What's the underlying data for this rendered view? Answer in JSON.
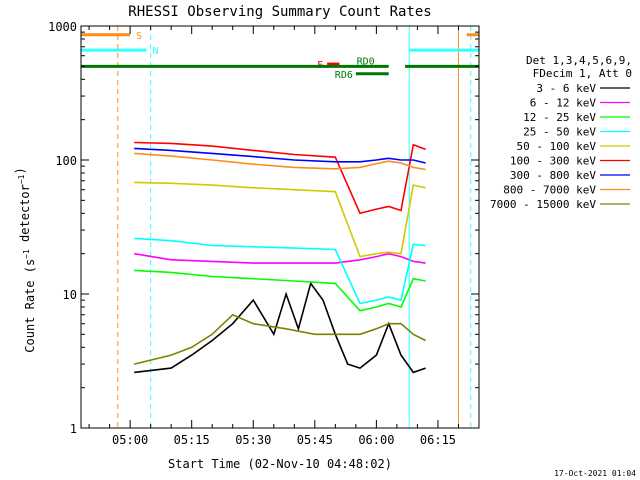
{
  "chart_data": {
    "type": "line",
    "title": "RHESSI Observing Summary Count Rates",
    "xlabel": "Start Time (02-Nov-10 04:48:02)",
    "ylabel": "Count Rate (s⁻¹ detector⁻¹)",
    "y_scale": "log",
    "ylim": [
      1,
      1000
    ],
    "xlim": [
      "04:48:02",
      "06:25:00"
    ],
    "x_ticks": [
      "05:00",
      "05:15",
      "05:30",
      "05:45",
      "06:00",
      "06:15"
    ],
    "y_ticks": [
      "1",
      "10",
      "100",
      "1000"
    ],
    "legend_header": [
      "Det 1,3,4,5,6,9,",
      "FDecim 1, Att 0"
    ],
    "legend_position": "right",
    "footer_date": "17-Oct-2021 01:04",
    "flags": [
      {
        "label": "S",
        "color": "#ff8c1a",
        "level": 860,
        "segments": [
          [
            "04:48",
            "05:00"
          ],
          [
            "06:22",
            "06:25"
          ]
        ]
      },
      {
        "label": "N",
        "color": "#33ffff",
        "level": 660,
        "segments": [
          [
            "04:48",
            "05:04"
          ],
          [
            "06:08",
            "06:25"
          ]
        ]
      },
      {
        "label": "F",
        "color": "#ff0000",
        "level": 520,
        "segments": [
          [
            "05:48",
            "05:51"
          ]
        ]
      },
      {
        "label": "RD0",
        "color": "#007700",
        "level": 500,
        "segments": [
          [
            "04:48",
            "06:03"
          ],
          [
            "06:07",
            "06:25"
          ]
        ]
      },
      {
        "label": "RD6",
        "color": "#007700",
        "level": 440,
        "segments": [
          [
            "05:55",
            "06:03"
          ]
        ]
      }
    ],
    "vertical_lines": [
      {
        "time": "04:57",
        "color": "#ff8c1a",
        "style": "dashed"
      },
      {
        "time": "05:05",
        "color": "#33ffff",
        "style": "dashed"
      },
      {
        "time": "06:08",
        "color": "#33ffff",
        "style": "solid"
      },
      {
        "time": "06:20",
        "color": "#ff8c1a",
        "style": "solid"
      },
      {
        "time": "06:23",
        "color": "#33ffff",
        "style": "dashed"
      }
    ],
    "series": [
      {
        "name": "3 - 6 keV",
        "color": "#000000",
        "x": [
          "05:01",
          "05:10",
          "05:15",
          "05:20",
          "05:25",
          "05:30",
          "05:35",
          "05:38",
          "05:41",
          "05:44",
          "05:47",
          "05:50",
          "05:53",
          "05:56",
          "06:00",
          "06:03",
          "06:06",
          "06:09",
          "06:12"
        ],
        "y": [
          2.6,
          2.8,
          3.5,
          4.5,
          6,
          9,
          5,
          10,
          5.5,
          12,
          9,
          5,
          3,
          2.8,
          3.5,
          6,
          3.5,
          2.6,
          2.8
        ]
      },
      {
        "name": "6 - 12 keV",
        "color": "#ff00ff",
        "x": [
          "05:01",
          "05:10",
          "05:20",
          "05:30",
          "05:40",
          "05:50",
          "05:56",
          "06:00",
          "06:03",
          "06:06",
          "06:09",
          "06:12"
        ],
        "y": [
          20,
          18,
          17.5,
          17,
          17,
          17,
          18,
          19,
          20,
          19,
          17.5,
          17
        ]
      },
      {
        "name": "12 - 25 keV",
        "color": "#00ff00",
        "x": [
          "05:01",
          "05:10",
          "05:20",
          "05:30",
          "05:40",
          "05:50",
          "05:56",
          "06:00",
          "06:03",
          "06:06",
          "06:09",
          "06:12"
        ],
        "y": [
          15,
          14.5,
          13.5,
          13,
          12.5,
          12,
          7.5,
          8,
          8.5,
          8,
          13,
          12.5
        ]
      },
      {
        "name": "25 - 50 keV",
        "color": "#00ffff",
        "x": [
          "05:01",
          "05:10",
          "05:20",
          "05:30",
          "05:40",
          "05:50",
          "05:56",
          "06:00",
          "06:03",
          "06:06",
          "06:09",
          "06:12"
        ],
        "y": [
          26,
          25,
          23,
          22.5,
          22,
          21.5,
          8.5,
          9,
          9.5,
          9,
          23.5,
          23
        ]
      },
      {
        "name": "50 - 100 keV",
        "color": "#d4c800",
        "x": [
          "05:01",
          "05:10",
          "05:20",
          "05:30",
          "05:40",
          "05:50",
          "05:56",
          "06:00",
          "06:03",
          "06:06",
          "06:09",
          "06:12"
        ],
        "y": [
          68,
          67,
          65,
          62,
          60,
          58,
          19,
          20,
          20.5,
          20,
          65,
          62
        ]
      },
      {
        "name": "100 - 300 keV",
        "color": "#ff0000",
        "x": [
          "05:01",
          "05:10",
          "05:20",
          "05:30",
          "05:40",
          "05:50",
          "05:56",
          "06:00",
          "06:03",
          "06:06",
          "06:09",
          "06:12"
        ],
        "y": [
          135,
          133,
          127,
          118,
          110,
          105,
          40,
          43,
          45,
          42,
          130,
          120
        ]
      },
      {
        "name": "300 - 800 keV",
        "color": "#0000ff",
        "x": [
          "05:01",
          "05:10",
          "05:20",
          "05:30",
          "05:40",
          "05:50",
          "05:56",
          "06:00",
          "06:03",
          "06:06",
          "06:09",
          "06:12"
        ],
        "y": [
          122,
          118,
          112,
          106,
          100,
          97,
          97,
          100,
          103,
          100,
          100,
          95
        ]
      },
      {
        "name": "800 - 7000 keV",
        "color": "#ff8c1a",
        "x": [
          "05:01",
          "05:10",
          "05:20",
          "05:30",
          "05:40",
          "05:50",
          "05:56",
          "06:00",
          "06:03",
          "06:06",
          "06:09",
          "06:12"
        ],
        "y": [
          112,
          107,
          100,
          93,
          88,
          86,
          88,
          94,
          98,
          95,
          88,
          85
        ]
      },
      {
        "name": "7000 - 15000 keV",
        "color": "#808000",
        "x": [
          "05:01",
          "05:10",
          "05:15",
          "05:20",
          "05:25",
          "05:30",
          "05:38",
          "05:45",
          "05:52",
          "05:56",
          "06:00",
          "06:03",
          "06:06",
          "06:09",
          "06:12"
        ],
        "y": [
          3,
          3.5,
          4,
          5,
          7,
          6,
          5.5,
          5,
          5,
          5,
          5.5,
          6,
          6,
          5,
          4.5
        ]
      }
    ]
  }
}
